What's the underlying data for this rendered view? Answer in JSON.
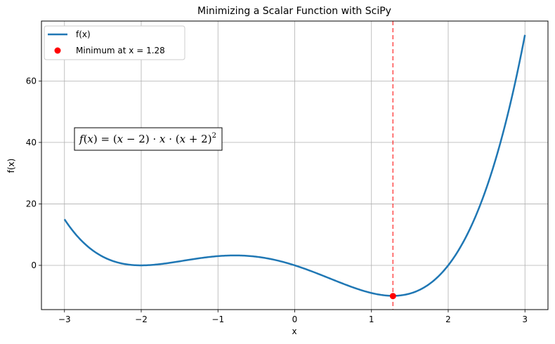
{
  "chart_data": {
    "type": "line",
    "title": "Minimizing a Scalar Function with SciPy",
    "xlabel": "x",
    "ylabel": "f(x)",
    "xlim": [
      -3.3,
      3.3
    ],
    "ylim": [
      -14.4,
      79.5
    ],
    "xticks": [
      -3,
      -2,
      -1,
      0,
      1,
      2,
      3
    ],
    "yticks": [
      0,
      20,
      40,
      60
    ],
    "grid": true,
    "legend_position": "top-left",
    "series": [
      {
        "name": "f(x)",
        "function": "(x-2)*x*(x+2)^2",
        "x_range": [
          -3,
          3
        ],
        "color": "#1f77b4"
      }
    ],
    "minimum": {
      "label": "Minimum at x = 1.28",
      "x": 1.28,
      "y": -10.0,
      "color": "#ff0000"
    },
    "vline": {
      "x": 1.28,
      "color": "#ff0000",
      "style": "dashed"
    },
    "annotation": {
      "text": "f(x) = (x − 2) · x · (x + 2)²",
      "parts": {
        "f": "f",
        "open": "(",
        "x": "x",
        "close_eq": ") = (",
        "minus2": " − 2) · ",
        "x2": "x",
        "dot": " · (",
        "x3": "x",
        "plus2": " + 2)",
        "sq": "2"
      }
    }
  }
}
